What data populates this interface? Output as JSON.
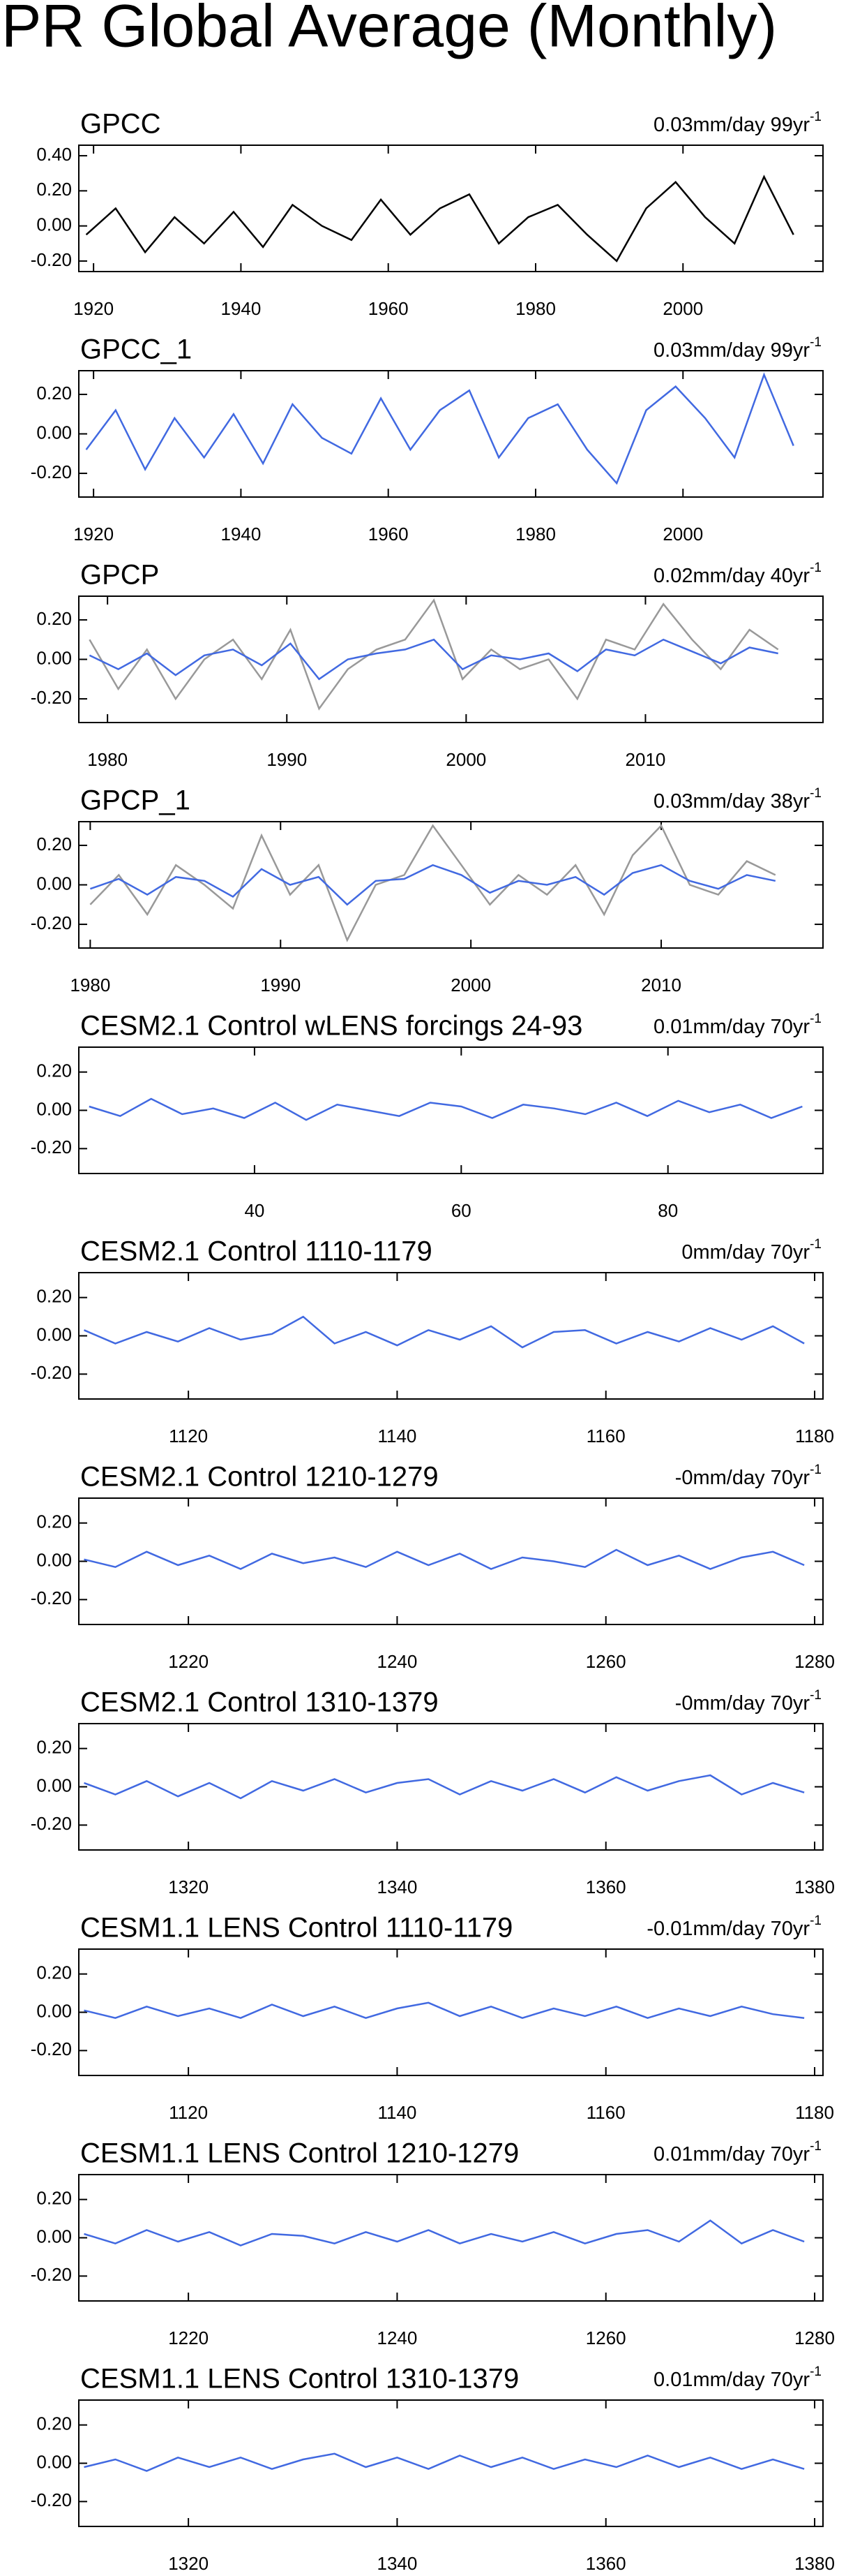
{
  "page_title": "PR Global Average (Monthly)",
  "chart_data": [
    {
      "type": "line",
      "title": "GPCC",
      "trend": "0.03mm/day 99yr",
      "trend_exponent": "-1",
      "x": [
        1919,
        1923,
        1927,
        1931,
        1935,
        1939,
        1943,
        1947,
        1951,
        1955,
        1959,
        1963,
        1967,
        1971,
        1975,
        1979,
        1983,
        1987,
        1991,
        1995,
        1999,
        2003,
        2007,
        2011,
        2015
      ],
      "series": [
        {
          "color": "#000000",
          "values": [
            -0.05,
            0.1,
            -0.15,
            0.05,
            -0.1,
            0.08,
            -0.12,
            0.12,
            0.0,
            -0.08,
            0.15,
            -0.05,
            0.1,
            0.18,
            -0.1,
            0.05,
            0.12,
            -0.05,
            -0.2,
            0.1,
            0.25,
            0.05,
            -0.1,
            0.28,
            -0.05
          ]
        }
      ],
      "xlim": [
        1918,
        2019
      ],
      "ylim": [
        -0.26,
        0.46
      ],
      "xticks": [
        1920,
        1940,
        1960,
        1980,
        2000
      ],
      "yticks": [
        {
          "value": 0.4,
          "label": "0.40"
        },
        {
          "value": 0.2,
          "label": "0.20"
        },
        {
          "value": 0,
          "label": "0.00"
        },
        {
          "value": -0.2,
          "label": "-0.20"
        }
      ]
    },
    {
      "type": "line",
      "title": "GPCC_1",
      "trend": "0.03mm/day 99yr",
      "trend_exponent": "-1",
      "x": [
        1919,
        1923,
        1927,
        1931,
        1935,
        1939,
        1943,
        1947,
        1951,
        1955,
        1959,
        1963,
        1967,
        1971,
        1975,
        1979,
        1983,
        1987,
        1991,
        1995,
        1999,
        2003,
        2007,
        2011,
        2015
      ],
      "series": [
        {
          "color": "#4169e1",
          "values": [
            -0.08,
            0.12,
            -0.18,
            0.08,
            -0.12,
            0.1,
            -0.15,
            0.15,
            -0.02,
            -0.1,
            0.18,
            -0.08,
            0.12,
            0.22,
            -0.12,
            0.08,
            0.15,
            -0.08,
            -0.25,
            0.12,
            0.24,
            0.08,
            -0.12,
            0.3,
            -0.06
          ]
        }
      ],
      "xlim": [
        1918,
        2019
      ],
      "ylim": [
        -0.32,
        0.32
      ],
      "xticks": [
        1920,
        1940,
        1960,
        1980,
        2000
      ],
      "yticks": [
        {
          "value": 0.2,
          "label": "0.20"
        },
        {
          "value": 0,
          "label": "0.00"
        },
        {
          "value": -0.2,
          "label": "-0.20"
        }
      ]
    },
    {
      "type": "line",
      "title": "GPCP",
      "trend": "0.02mm/day 40yr",
      "trend_exponent": "-1",
      "x": [
        1979,
        1980.6,
        1982.2,
        1983.8,
        1985.4,
        1987,
        1988.6,
        1990.2,
        1991.8,
        1993.4,
        1995,
        1996.6,
        1998.2,
        1999.8,
        2001.4,
        2003,
        2004.6,
        2006.2,
        2007.8,
        2009.4,
        2011,
        2012.6,
        2014.2,
        2015.8,
        2017.4
      ],
      "series": [
        {
          "color": "#999999",
          "values": [
            0.1,
            -0.15,
            0.05,
            -0.2,
            0.0,
            0.1,
            -0.1,
            0.15,
            -0.25,
            -0.05,
            0.05,
            0.1,
            0.3,
            -0.1,
            0.05,
            -0.05,
            0.0,
            -0.2,
            0.1,
            0.05,
            0.28,
            0.1,
            -0.05,
            0.15,
            0.05
          ]
        },
        {
          "color": "#4169e1",
          "values": [
            0.02,
            -0.05,
            0.03,
            -0.08,
            0.02,
            0.05,
            -0.03,
            0.08,
            -0.1,
            0.0,
            0.03,
            0.05,
            0.1,
            -0.05,
            0.02,
            0.0,
            0.03,
            -0.06,
            0.05,
            0.02,
            0.1,
            0.04,
            -0.02,
            0.06,
            0.03
          ]
        }
      ],
      "xlim": [
        1978.4,
        2019.9
      ],
      "ylim": [
        -0.32,
        0.32
      ],
      "xticks": [
        1980,
        1990,
        2000,
        2010
      ],
      "yticks": [
        {
          "value": 0.2,
          "label": "0.20"
        },
        {
          "value": 0,
          "label": "0.00"
        },
        {
          "value": -0.2,
          "label": "-0.20"
        }
      ]
    },
    {
      "type": "line",
      "title": "GPCP_1",
      "trend": "0.03mm/day 38yr",
      "trend_exponent": "-1",
      "x": [
        1980,
        1981.5,
        1983,
        1984.5,
        1986,
        1987.5,
        1989,
        1990.5,
        1992,
        1993.5,
        1995,
        1996.5,
        1998,
        1999.5,
        2001,
        2002.5,
        2004,
        2005.5,
        2007,
        2008.5,
        2010,
        2011.5,
        2013,
        2014.5,
        2016
      ],
      "series": [
        {
          "color": "#999999",
          "values": [
            -0.1,
            0.05,
            -0.15,
            0.1,
            0.0,
            -0.12,
            0.25,
            -0.05,
            0.1,
            -0.28,
            0.0,
            0.05,
            0.3,
            0.1,
            -0.1,
            0.05,
            -0.05,
            0.1,
            -0.15,
            0.15,
            0.3,
            0.0,
            -0.05,
            0.12,
            0.05
          ]
        },
        {
          "color": "#4169e1",
          "values": [
            -0.02,
            0.03,
            -0.05,
            0.04,
            0.02,
            -0.06,
            0.08,
            0.0,
            0.04,
            -0.1,
            0.02,
            0.03,
            0.1,
            0.05,
            -0.04,
            0.02,
            0.0,
            0.04,
            -0.05,
            0.06,
            0.1,
            0.02,
            -0.02,
            0.05,
            0.02
          ]
        }
      ],
      "xlim": [
        1979.4,
        2018.5
      ],
      "ylim": [
        -0.32,
        0.32
      ],
      "xticks": [
        1980,
        1990,
        2000,
        2010
      ],
      "yticks": [
        {
          "value": 0.2,
          "label": "0.20"
        },
        {
          "value": 0,
          "label": "0.00"
        },
        {
          "value": -0.2,
          "label": "-0.20"
        }
      ]
    },
    {
      "type": "line",
      "title": "CESM2.1 Control wLENS forcings 24-93",
      "trend": "0.01mm/day 70yr",
      "trend_exponent": "-1",
      "x": [
        24,
        27,
        30,
        33,
        36,
        39,
        42,
        45,
        48,
        51,
        54,
        57,
        60,
        63,
        66,
        69,
        72,
        75,
        78,
        81,
        84,
        87,
        90,
        93
      ],
      "series": [
        {
          "color": "#4169e1",
          "values": [
            0.02,
            -0.03,
            0.06,
            -0.02,
            0.01,
            -0.04,
            0.04,
            -0.05,
            0.03,
            0.0,
            -0.03,
            0.04,
            0.02,
            -0.04,
            0.03,
            0.01,
            -0.02,
            0.04,
            -0.03,
            0.05,
            -0.01,
            0.03,
            -0.04,
            0.02
          ]
        }
      ],
      "xlim": [
        23,
        95
      ],
      "ylim": [
        -0.33,
        0.33
      ],
      "xticks": [
        40,
        60,
        80
      ],
      "yticks": [
        {
          "value": 0.2,
          "label": "0.20"
        },
        {
          "value": 0,
          "label": "0.00"
        },
        {
          "value": -0.2,
          "label": "-0.20"
        }
      ]
    },
    {
      "type": "line",
      "title": "CESM2.1 Control 1110-1179",
      "trend": "0mm/day 70yr",
      "trend_exponent": "-1",
      "x": [
        1110,
        1113,
        1116,
        1119,
        1122,
        1125,
        1128,
        1131,
        1134,
        1137,
        1140,
        1143,
        1146,
        1149,
        1152,
        1155,
        1158,
        1161,
        1164,
        1167,
        1170,
        1173,
        1176,
        1179
      ],
      "series": [
        {
          "color": "#4169e1",
          "values": [
            0.03,
            -0.04,
            0.02,
            -0.03,
            0.04,
            -0.02,
            0.01,
            0.1,
            -0.04,
            0.02,
            -0.05,
            0.03,
            -0.02,
            0.05,
            -0.06,
            0.02,
            0.03,
            -0.04,
            0.02,
            -0.03,
            0.04,
            -0.02,
            0.05,
            -0.04
          ]
        }
      ],
      "xlim": [
        1109.5,
        1180.8
      ],
      "ylim": [
        -0.33,
        0.33
      ],
      "xticks": [
        1120,
        1140,
        1160,
        1180
      ],
      "yticks": [
        {
          "value": 0.2,
          "label": "0.20"
        },
        {
          "value": 0,
          "label": "0.00"
        },
        {
          "value": -0.2,
          "label": "-0.20"
        }
      ]
    },
    {
      "type": "line",
      "title": "CESM2.1 Control 1210-1279",
      "trend": "-0mm/day 70yr",
      "trend_exponent": "-1",
      "x": [
        1210,
        1213,
        1216,
        1219,
        1222,
        1225,
        1228,
        1231,
        1234,
        1237,
        1240,
        1243,
        1246,
        1249,
        1252,
        1255,
        1258,
        1261,
        1264,
        1267,
        1270,
        1273,
        1276,
        1279
      ],
      "series": [
        {
          "color": "#4169e1",
          "values": [
            0.01,
            -0.03,
            0.05,
            -0.02,
            0.03,
            -0.04,
            0.04,
            -0.01,
            0.02,
            -0.03,
            0.05,
            -0.02,
            0.04,
            -0.04,
            0.02,
            0.0,
            -0.03,
            0.06,
            -0.02,
            0.03,
            -0.04,
            0.02,
            0.05,
            -0.02
          ]
        }
      ],
      "xlim": [
        1209.5,
        1280.8
      ],
      "ylim": [
        -0.33,
        0.33
      ],
      "xticks": [
        1220,
        1240,
        1260,
        1280
      ],
      "yticks": [
        {
          "value": 0.2,
          "label": "0.20"
        },
        {
          "value": 0,
          "label": "0.00"
        },
        {
          "value": -0.2,
          "label": "-0.20"
        }
      ]
    },
    {
      "type": "line",
      "title": "CESM2.1 Control 1310-1379",
      "trend": "-0mm/day 70yr",
      "trend_exponent": "-1",
      "x": [
        1310,
        1313,
        1316,
        1319,
        1322,
        1325,
        1328,
        1331,
        1334,
        1337,
        1340,
        1343,
        1346,
        1349,
        1352,
        1355,
        1358,
        1361,
        1364,
        1367,
        1370,
        1373,
        1376,
        1379
      ],
      "series": [
        {
          "color": "#4169e1",
          "values": [
            0.02,
            -0.04,
            0.03,
            -0.05,
            0.02,
            -0.06,
            0.03,
            -0.02,
            0.04,
            -0.03,
            0.02,
            0.04,
            -0.04,
            0.03,
            -0.02,
            0.04,
            -0.03,
            0.05,
            -0.02,
            0.03,
            0.06,
            -0.04,
            0.02,
            -0.03
          ]
        }
      ],
      "xlim": [
        1309.5,
        1380.8
      ],
      "ylim": [
        -0.33,
        0.33
      ],
      "xticks": [
        1320,
        1340,
        1360,
        1380
      ],
      "yticks": [
        {
          "value": 0.2,
          "label": "0.20"
        },
        {
          "value": 0,
          "label": "0.00"
        },
        {
          "value": -0.2,
          "label": "-0.20"
        }
      ]
    },
    {
      "type": "line",
      "title": "CESM1.1 LENS Control 1110-1179",
      "trend": "-0.01mm/day 70yr",
      "trend_exponent": "-1",
      "x": [
        1110,
        1113,
        1116,
        1119,
        1122,
        1125,
        1128,
        1131,
        1134,
        1137,
        1140,
        1143,
        1146,
        1149,
        1152,
        1155,
        1158,
        1161,
        1164,
        1167,
        1170,
        1173,
        1176,
        1179
      ],
      "series": [
        {
          "color": "#4169e1",
          "values": [
            0.01,
            -0.03,
            0.03,
            -0.02,
            0.02,
            -0.03,
            0.04,
            -0.02,
            0.03,
            -0.03,
            0.02,
            0.05,
            -0.02,
            0.03,
            -0.03,
            0.02,
            -0.02,
            0.03,
            -0.03,
            0.02,
            -0.02,
            0.03,
            -0.01,
            -0.03
          ]
        }
      ],
      "xlim": [
        1109.5,
        1180.8
      ],
      "ylim": [
        -0.33,
        0.33
      ],
      "xticks": [
        1120,
        1140,
        1160,
        1180
      ],
      "yticks": [
        {
          "value": 0.2,
          "label": "0.20"
        },
        {
          "value": 0,
          "label": "0.00"
        },
        {
          "value": -0.2,
          "label": "-0.20"
        }
      ]
    },
    {
      "type": "line",
      "title": "CESM1.1 LENS Control 1210-1279",
      "trend": "0.01mm/day 70yr",
      "trend_exponent": "-1",
      "x": [
        1210,
        1213,
        1216,
        1219,
        1222,
        1225,
        1228,
        1231,
        1234,
        1237,
        1240,
        1243,
        1246,
        1249,
        1252,
        1255,
        1258,
        1261,
        1264,
        1267,
        1270,
        1273,
        1276,
        1279
      ],
      "series": [
        {
          "color": "#4169e1",
          "values": [
            0.02,
            -0.03,
            0.04,
            -0.02,
            0.03,
            -0.04,
            0.02,
            0.01,
            -0.03,
            0.03,
            -0.02,
            0.04,
            -0.03,
            0.02,
            -0.02,
            0.03,
            -0.03,
            0.02,
            0.04,
            -0.02,
            0.09,
            -0.03,
            0.04,
            -0.02
          ]
        }
      ],
      "xlim": [
        1209.5,
        1280.8
      ],
      "ylim": [
        -0.33,
        0.33
      ],
      "xticks": [
        1220,
        1240,
        1260,
        1280
      ],
      "yticks": [
        {
          "value": 0.2,
          "label": "0.20"
        },
        {
          "value": 0,
          "label": "0.00"
        },
        {
          "value": -0.2,
          "label": "-0.20"
        }
      ]
    },
    {
      "type": "line",
      "title": "CESM1.1 LENS Control 1310-1379",
      "trend": "0.01mm/day 70yr",
      "trend_exponent": "-1",
      "x": [
        1310,
        1313,
        1316,
        1319,
        1322,
        1325,
        1328,
        1331,
        1334,
        1337,
        1340,
        1343,
        1346,
        1349,
        1352,
        1355,
        1358,
        1361,
        1364,
        1367,
        1370,
        1373,
        1376,
        1379
      ],
      "series": [
        {
          "color": "#4169e1",
          "values": [
            -0.02,
            0.02,
            -0.04,
            0.03,
            -0.02,
            0.03,
            -0.03,
            0.02,
            0.05,
            -0.02,
            0.03,
            -0.03,
            0.04,
            -0.02,
            0.03,
            -0.03,
            0.02,
            -0.02,
            0.04,
            -0.02,
            0.03,
            -0.03,
            0.02,
            -0.03
          ]
        }
      ],
      "xlim": [
        1309.5,
        1380.8
      ],
      "ylim": [
        -0.33,
        0.33
      ],
      "xticks": [
        1320,
        1340,
        1360,
        1380
      ],
      "yticks": [
        {
          "value": 0.2,
          "label": "0.20"
        },
        {
          "value": 0,
          "label": "0.00"
        },
        {
          "value": -0.2,
          "label": "-0.20"
        }
      ]
    }
  ]
}
